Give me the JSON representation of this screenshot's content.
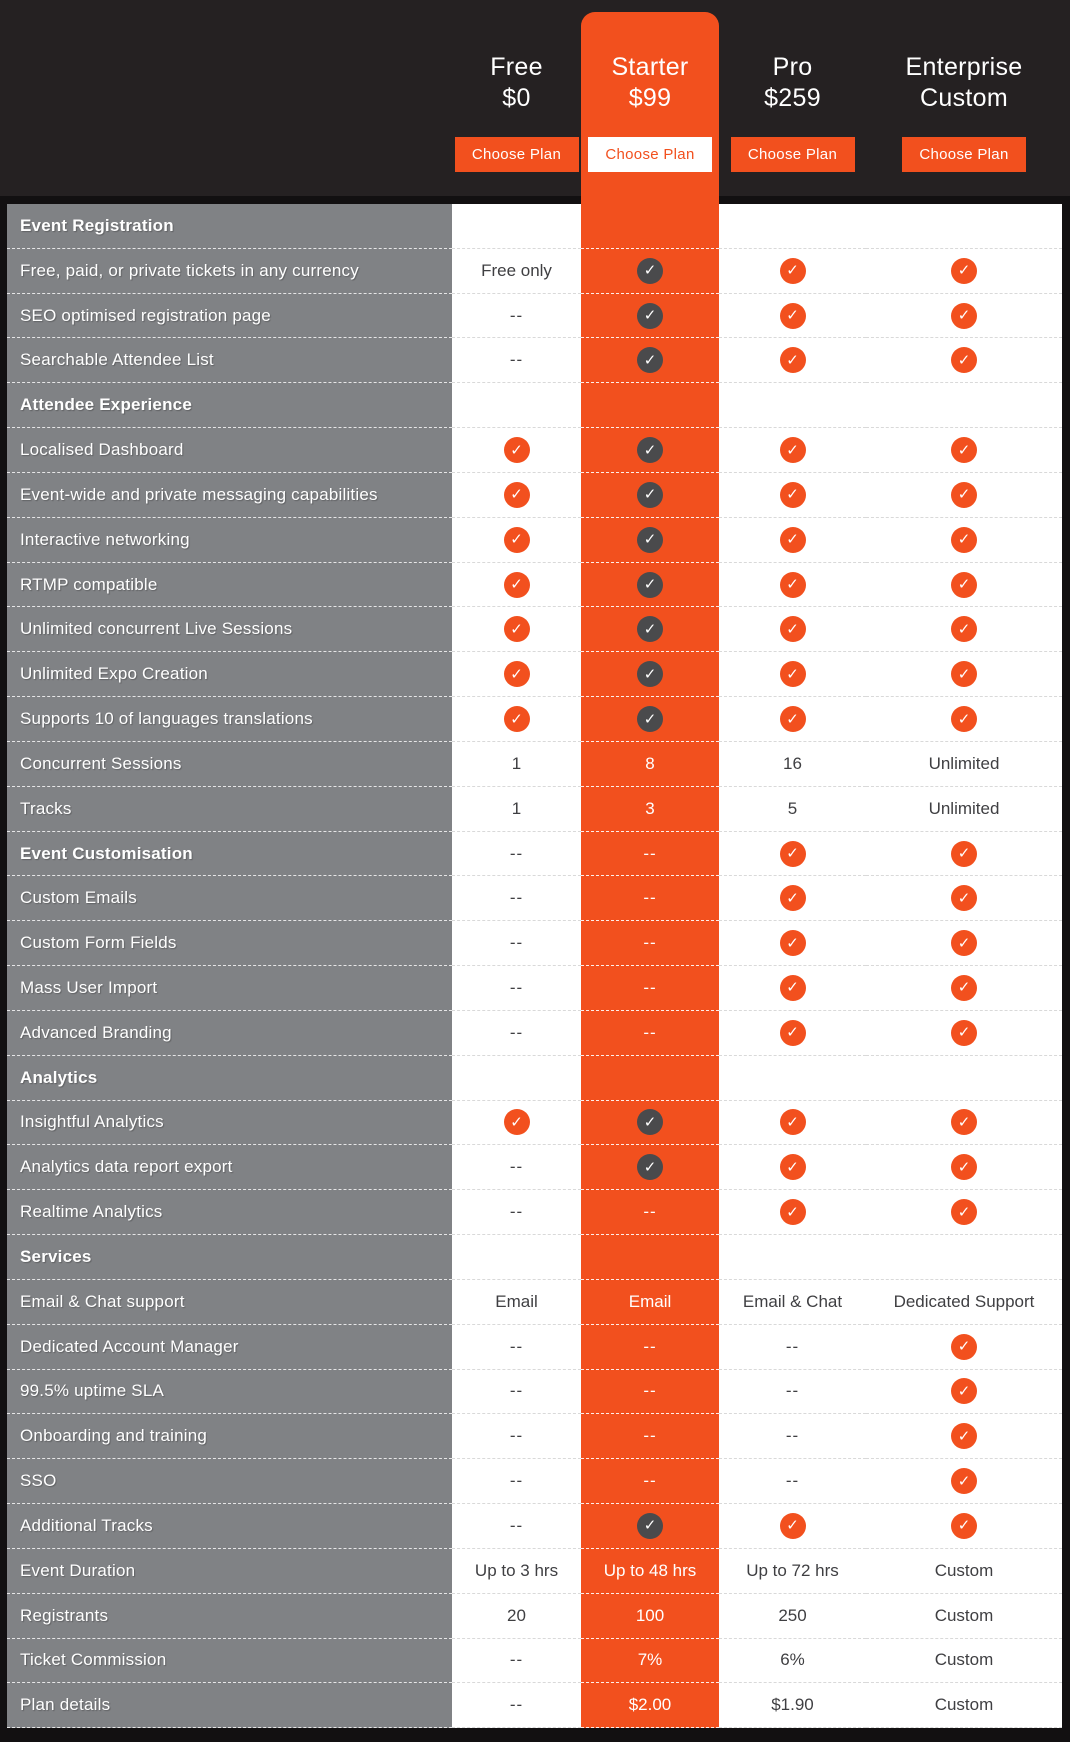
{
  "theme": {
    "accent": "#F2501E",
    "column_gray": "#808285",
    "background": "#252122",
    "border_black": "#121011",
    "check_dark": "#4A4A4C",
    "check_mark_color": "#FFFFFF"
  },
  "icons": {
    "check": "✓"
  },
  "plans": [
    {
      "name": "Free",
      "price": "$0",
      "button": "Choose Plan",
      "highlight": false
    },
    {
      "name": "Starter",
      "price": "$99",
      "button": "Choose Plan",
      "highlight": true
    },
    {
      "name": "Pro",
      "price": "$259",
      "button": "Choose Plan",
      "highlight": false
    },
    {
      "name": "Enterprise",
      "price": "Custom",
      "button": "Choose Plan",
      "highlight": false
    }
  ],
  "rows": [
    {
      "label": "Event Registration",
      "section": true,
      "values": [
        "",
        "",
        "",
        ""
      ]
    },
    {
      "label": "Free, paid, or private tickets in any currency",
      "section": false,
      "values": [
        "Free only",
        "check",
        "check",
        "check"
      ]
    },
    {
      "label": "SEO optimised registration page",
      "section": false,
      "values": [
        "--",
        "check",
        "check",
        "check"
      ]
    },
    {
      "label": "Searchable Attendee List",
      "section": false,
      "values": [
        "--",
        "check",
        "check",
        "check"
      ]
    },
    {
      "label": "Attendee Experience",
      "section": true,
      "values": [
        "",
        "",
        "",
        ""
      ]
    },
    {
      "label": "Localised Dashboard",
      "section": false,
      "values": [
        "check",
        "check",
        "check",
        "check"
      ]
    },
    {
      "label": "Event-wide and private messaging capabilities",
      "section": false,
      "values": [
        "check",
        "check",
        "check",
        "check"
      ]
    },
    {
      "label": "Interactive networking",
      "section": false,
      "values": [
        "check",
        "check",
        "check",
        "check"
      ]
    },
    {
      "label": "RTMP compatible",
      "section": false,
      "values": [
        "check",
        "check",
        "check",
        "check"
      ]
    },
    {
      "label": "Unlimited concurrent Live Sessions",
      "section": false,
      "values": [
        "check",
        "check",
        "check",
        "check"
      ]
    },
    {
      "label": "Unlimited Expo Creation",
      "section": false,
      "values": [
        "check",
        "check",
        "check",
        "check"
      ]
    },
    {
      "label": "Supports 10 of languages translations",
      "section": false,
      "values": [
        "check",
        "check",
        "check",
        "check"
      ]
    },
    {
      "label": "Concurrent Sessions",
      "section": false,
      "values": [
        "1",
        "8",
        "16",
        "Unlimited"
      ]
    },
    {
      "label": "Tracks",
      "section": false,
      "values": [
        "1",
        "3",
        "5",
        "Unlimited"
      ]
    },
    {
      "label": "Event Customisation",
      "section": true,
      "values": [
        "--",
        "--",
        "check",
        "check"
      ]
    },
    {
      "label": "Custom Emails",
      "section": false,
      "values": [
        "--",
        "--",
        "check",
        "check"
      ]
    },
    {
      "label": "Custom Form Fields",
      "section": false,
      "values": [
        "--",
        "--",
        "check",
        "check"
      ]
    },
    {
      "label": "Mass User Import",
      "section": false,
      "values": [
        "--",
        "--",
        "check",
        "check"
      ]
    },
    {
      "label": "Advanced Branding",
      "section": false,
      "values": [
        "--",
        "--",
        "check",
        "check"
      ]
    },
    {
      "label": "Analytics",
      "section": true,
      "values": [
        "",
        "",
        "",
        ""
      ]
    },
    {
      "label": "Insightful Analytics",
      "section": false,
      "values": [
        "check",
        "check",
        "check",
        "check"
      ]
    },
    {
      "label": "Analytics data report export",
      "section": false,
      "values": [
        "--",
        "check",
        "check",
        "check"
      ]
    },
    {
      "label": "Realtime Analytics",
      "section": false,
      "values": [
        "--",
        "--",
        "check",
        "check"
      ]
    },
    {
      "label": "Services",
      "section": true,
      "values": [
        "",
        "",
        "",
        ""
      ]
    },
    {
      "label": "Email & Chat support",
      "section": false,
      "values": [
        "Email",
        "Email",
        "Email & Chat",
        "Dedicated Support"
      ]
    },
    {
      "label": "Dedicated Account Manager",
      "section": false,
      "values": [
        "--",
        "--",
        "--",
        "check"
      ]
    },
    {
      "label": "99.5% uptime SLA",
      "section": false,
      "values": [
        "--",
        "--",
        "--",
        "check"
      ]
    },
    {
      "label": "Onboarding and training",
      "section": false,
      "values": [
        "--",
        "--",
        "--",
        "check"
      ]
    },
    {
      "label": "SSO",
      "section": false,
      "values": [
        "--",
        "--",
        "--",
        "check"
      ]
    },
    {
      "label": "Additional Tracks",
      "section": false,
      "values": [
        "--",
        "check",
        "check",
        "check"
      ]
    },
    {
      "label": "Event Duration",
      "section": false,
      "values": [
        "Up to 3 hrs",
        "Up to 48 hrs",
        "Up to 72 hrs",
        "Custom"
      ]
    },
    {
      "label": "Registrants",
      "section": false,
      "values": [
        "20",
        "100",
        "250",
        "Custom"
      ]
    },
    {
      "label": "Ticket Commission",
      "section": false,
      "values": [
        "--",
        "7%",
        "6%",
        "Custom"
      ]
    },
    {
      "label": "Plan details",
      "section": false,
      "values": [
        "--",
        "$2.00",
        "$1.90",
        "Custom"
      ]
    }
  ]
}
